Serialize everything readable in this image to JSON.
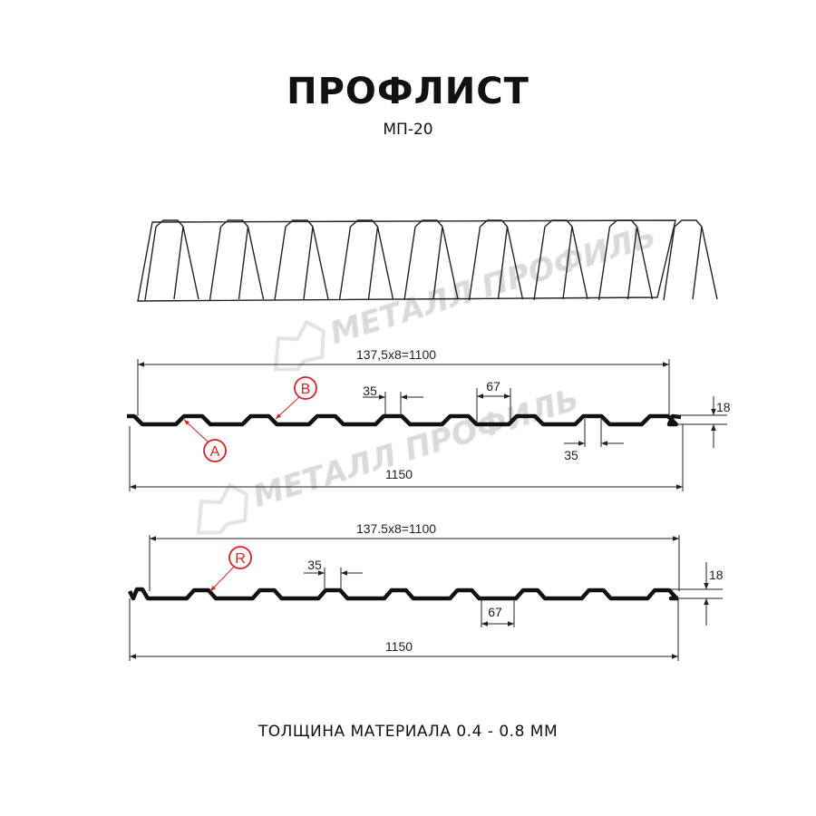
{
  "title": "ПРОФЛИСТ",
  "model": "МП-20",
  "footer": "ТОЛЩИНА МАТЕРИАЛА 0.4 - 0.8 ММ",
  "watermark": "МЕТАЛЛ ПРОФИЛЬ",
  "colors": {
    "profile": "#111111",
    "marker": "#e02020",
    "watermark": "#bbbbbb"
  },
  "profile_a": {
    "pitch_label": "137,5x8=1100",
    "width_label": "1150",
    "crest_label": "35",
    "valley_label": "67",
    "bottom_crest_label": "35",
    "height_label": "18",
    "markers": [
      "A",
      "B"
    ]
  },
  "profile_b": {
    "pitch_label": "137.5x8=1100",
    "width_label": "1150",
    "crest_label": "35",
    "valley_label": "67",
    "height_label": "18",
    "markers": [
      "R"
    ]
  }
}
